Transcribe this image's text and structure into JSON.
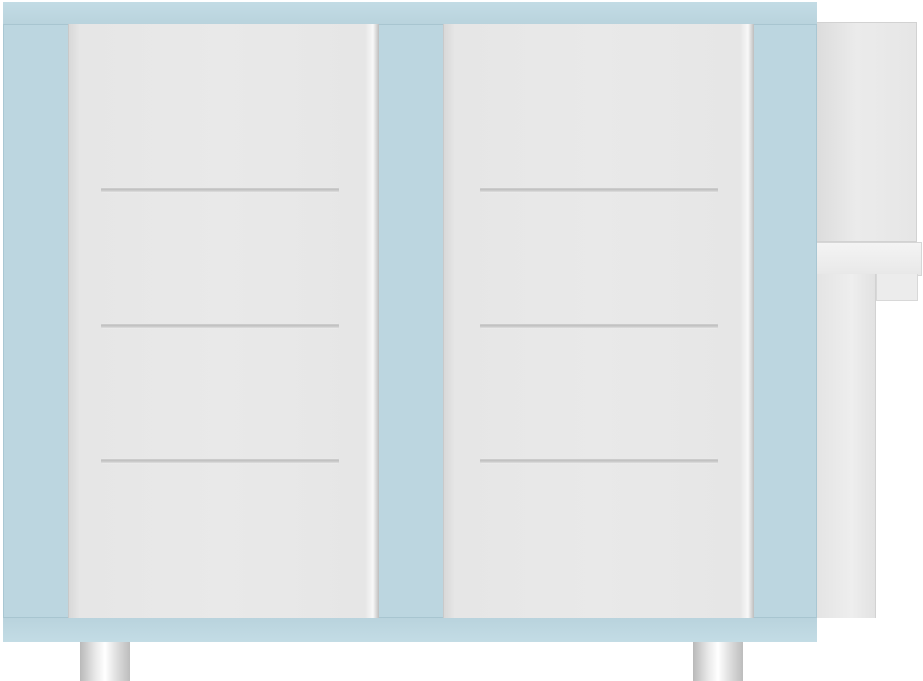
{
  "scene": {
    "object": "cabinet",
    "door_count": 2,
    "shelves_per_door": 3,
    "colors": {
      "frame": "#bcd6e0",
      "door": "#e8e8e8",
      "shelf": "#c4c4c4",
      "side_unit": "#e6e6e6",
      "leg": "#e0e0e0"
    }
  }
}
